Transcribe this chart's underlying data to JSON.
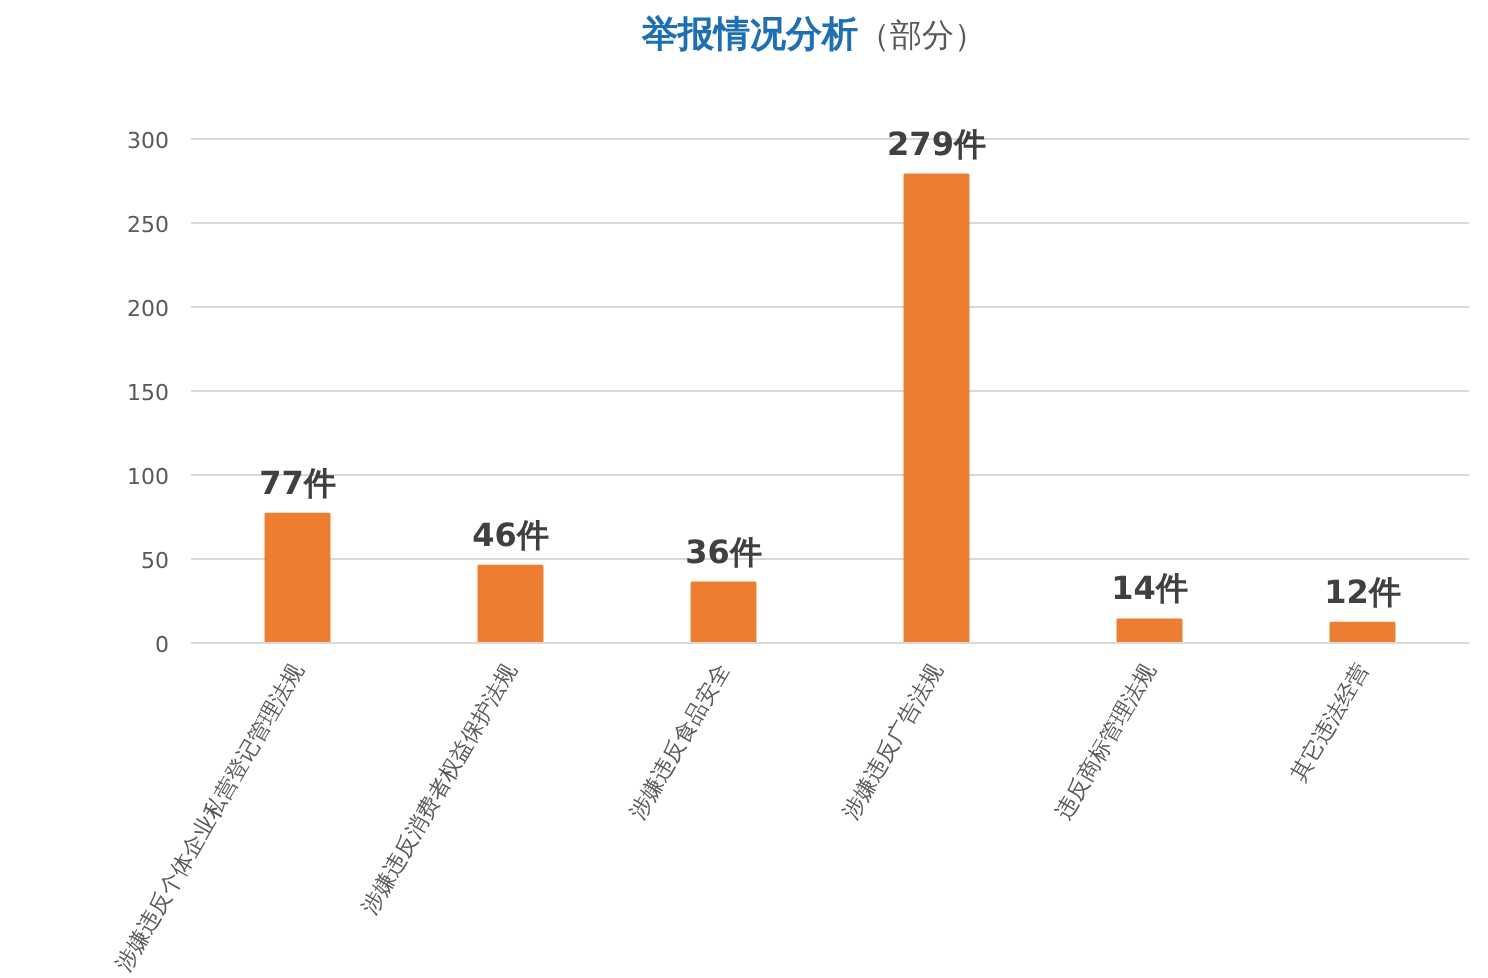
{
  "chart_data": {
    "type": "bar",
    "title": "举报情况分析",
    "subtitle": "（部分）",
    "categories": [
      "涉嫌违反个体企业私营登记管理法规",
      "涉嫌违反消费者权益保护法规",
      "涉嫌违反食品安全",
      "涉嫌违反广告法规",
      "违反商标管理法规",
      "其它违法经营"
    ],
    "values": [
      77,
      46,
      36,
      279,
      14,
      12
    ],
    "value_labels": [
      "77件",
      "46件",
      "36件",
      "279件",
      "14件",
      "12件"
    ],
    "color": "#ed7d31",
    "ylim": [
      0,
      300
    ],
    "yticks": [
      0,
      50,
      100,
      150,
      200,
      250,
      300
    ],
    "grid": "y"
  }
}
